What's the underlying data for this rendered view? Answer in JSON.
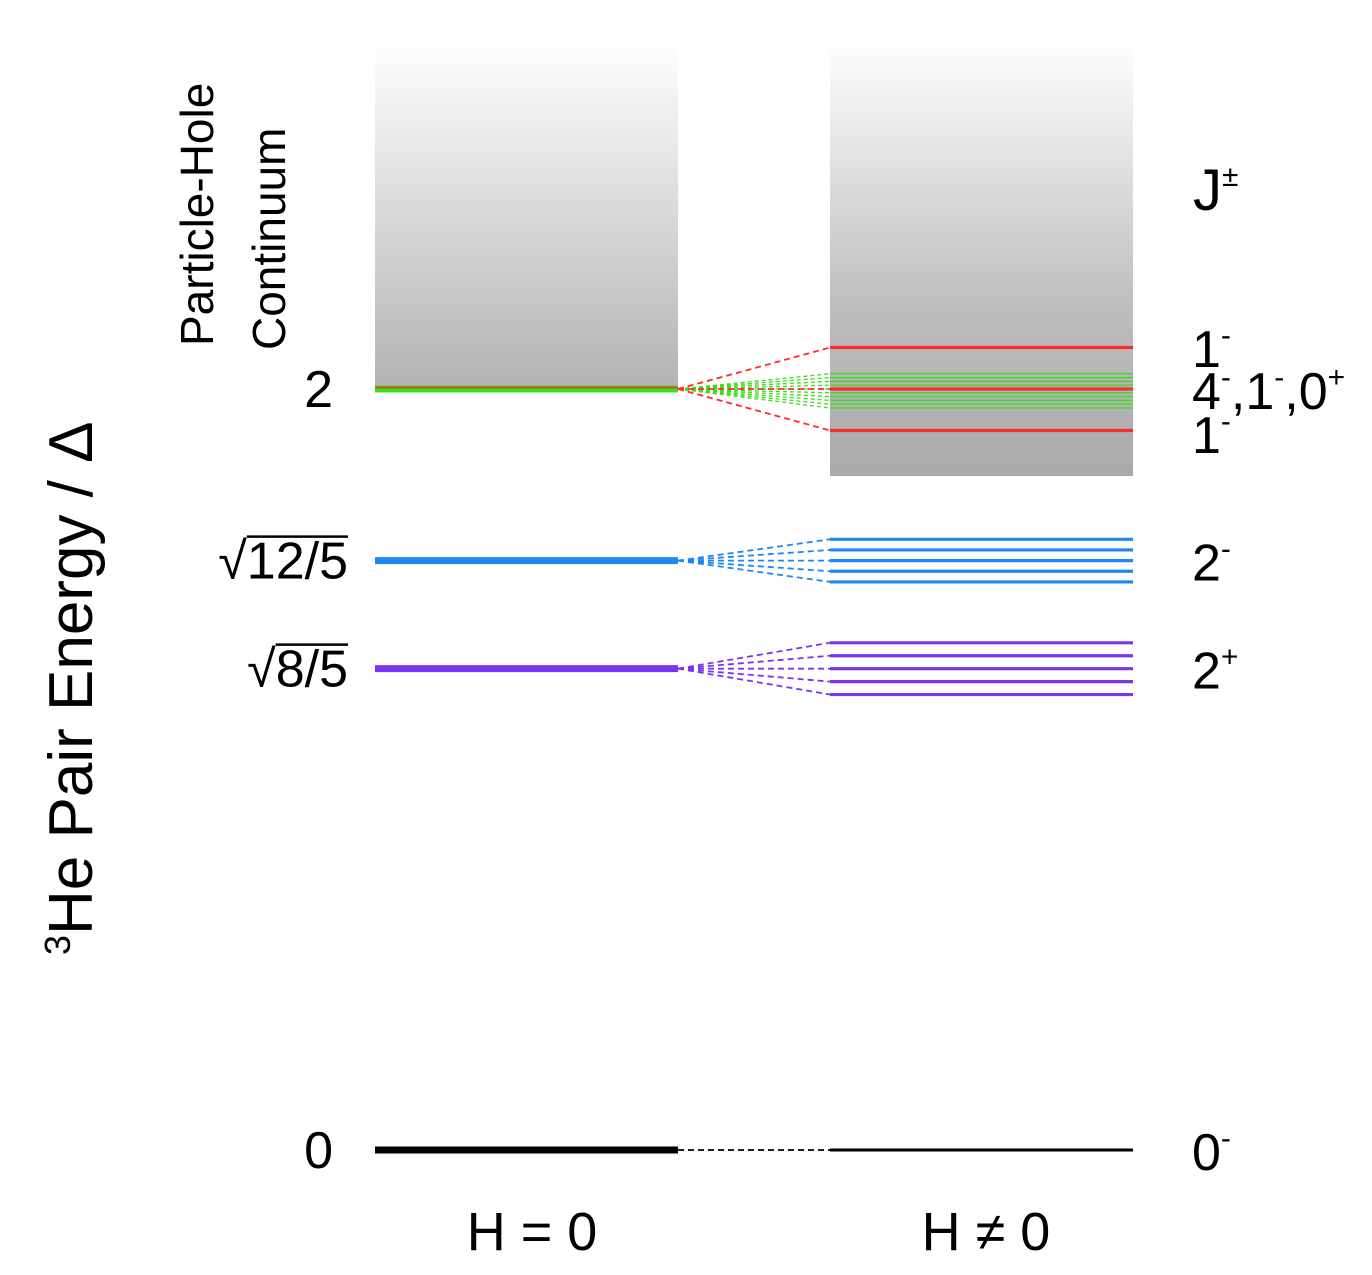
{
  "figure": {
    "y_axis_label_base": "He Pair Energy / Δ",
    "y_axis_label_superscript": "3",
    "continuum_label_line1": "Particle-Hole",
    "continuum_label_line2": "Continuum",
    "quantum_number_header_base": "J",
    "quantum_number_header_superscript": "±",
    "column_left_label": "H = 0",
    "column_right_label": "H ≠ 0"
  },
  "chart_data": {
    "type": "level-diagram",
    "y_unit": "Δ",
    "y_range": [
      0,
      2.6
    ],
    "continuum_threshold": 2,
    "levels": [
      {
        "name": "ground",
        "energy": 0,
        "tick_label": "0",
        "color": "#000000",
        "j_label": [
          {
            "t": "0",
            "s": "-"
          }
        ],
        "split_offsets": [
          0
        ]
      },
      {
        "name": "2plus",
        "energy": 1.265,
        "tick_sqrt": "8/5",
        "color": "#7a35f0",
        "j_label": [
          {
            "t": "2",
            "s": "+"
          }
        ],
        "split_offsets": [
          -0.068,
          -0.034,
          0,
          0.034,
          0.068
        ]
      },
      {
        "name": "2minus",
        "energy": 1.549,
        "tick_sqrt": "12/5",
        "color": "#1e88f0",
        "j_label": [
          {
            "t": "2",
            "s": "-"
          }
        ],
        "split_offsets": [
          -0.056,
          -0.028,
          0,
          0.028,
          0.056
        ]
      },
      {
        "name": "green-multiplet",
        "energy": 2,
        "tick_label": "2",
        "color": "#3cdc1e",
        "j_label": [],
        "split_offsets": [
          -0.05,
          -0.04,
          -0.03,
          -0.02,
          -0.01,
          0,
          0.01,
          0.02,
          0.03,
          0.04
        ]
      },
      {
        "name": "red-1minus",
        "energy": 2,
        "color": "#ff2b2b",
        "j_label": [],
        "split_offsets": [
          -0.109,
          0,
          0.109
        ]
      }
    ],
    "extra_j_labels": [
      {
        "energy": 2.11,
        "parts": [
          {
            "t": "1",
            "s": "-"
          }
        ]
      },
      {
        "energy": 2.0,
        "parts": [
          {
            "t": "4",
            "s": "-"
          },
          {
            "t": ",1",
            "s": "-"
          },
          {
            "t": ",0",
            "s": "+"
          }
        ]
      },
      {
        "energy": 1.885,
        "parts": [
          {
            "t": "1",
            "s": "-"
          }
        ]
      }
    ]
  }
}
